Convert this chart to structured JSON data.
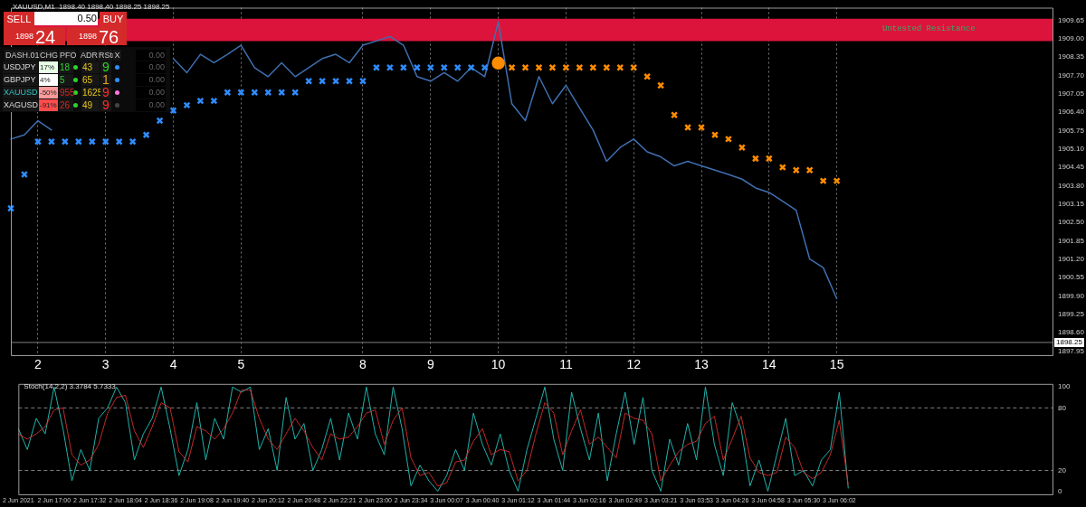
{
  "chart_data": [
    {
      "type": "line",
      "title": "XAUUSD,M1  1898.40 1898.40 1898.25 1898.25",
      "categories": [
        null,
        null,
        "2",
        null,
        null,
        null,
        null,
        "3",
        null,
        null,
        null,
        null,
        "4",
        null,
        null,
        null,
        null,
        "5",
        null,
        null,
        null,
        null,
        null,
        null,
        null,
        null,
        "8",
        null,
        null,
        null,
        null,
        "9",
        null,
        null,
        null,
        null,
        "10",
        null,
        null,
        null,
        null,
        "11",
        null,
        null,
        null,
        null,
        "12",
        null,
        null,
        null,
        null,
        "13",
        null,
        null,
        null,
        null,
        "14",
        null,
        null,
        null,
        null,
        "15",
        null,
        null,
        null,
        null,
        null,
        null,
        null,
        null,
        null,
        null,
        null,
        null,
        null,
        null,
        null,
        null
      ],
      "series": [
        {
          "type": "line",
          "color": "#3f6fb0",
          "values": [
            1905.45,
            1905.6,
            1906.1,
            1905.77,
            null,
            null,
            null,
            null,
            null,
            null,
            null,
            null,
            1908.3,
            1907.8,
            1908.45,
            1908.15,
            1908.45,
            1908.77,
            1907.98,
            1907.66,
            1908.15,
            1907.66,
            1907.98,
            1908.3,
            1908.45,
            1908.15,
            1908.77,
            1908.92,
            1909.08,
            1908.77,
            1907.66,
            1907.5,
            1907.8,
            1907.5,
            1907.98,
            1907.66,
            1909.6,
            1906.7,
            1906.1,
            1907.66,
            1906.7,
            1907.35,
            1906.55,
            1905.77,
            1904.66,
            1905.15,
            1905.45,
            1905.0,
            1904.82,
            1904.5,
            1904.66,
            1904.5,
            1904.35,
            1904.2,
            1904.03,
            1903.72,
            1903.56,
            1903.25,
            1902.93,
            1901.2,
            1900.9,
            1899.8,
            null,
            null,
            null,
            null,
            null,
            null,
            null,
            null,
            null,
            null,
            null,
            null,
            null,
            null,
            null,
            null
          ]
        },
        {
          "type": "scatter",
          "marker": "cross",
          "color": "#2f8cff",
          "values": [
            1903.0,
            1904.2,
            1905.36,
            1905.36,
            1905.36,
            1905.36,
            1905.36,
            1905.36,
            1905.36,
            1905.36,
            1905.6,
            1906.1,
            1906.46,
            1906.65,
            1906.8,
            1906.8,
            1907.1,
            1907.1,
            1907.1,
            1907.1,
            1907.1,
            1907.1,
            1907.5,
            1907.5,
            1907.5,
            1907.5,
            1907.5,
            1907.98,
            1907.98,
            1907.98,
            1907.98,
            1907.98,
            1907.98,
            1907.98,
            1907.98,
            1907.98,
            null,
            null,
            null,
            null,
            null,
            null,
            null,
            null,
            null,
            null,
            null,
            null,
            null,
            null,
            null,
            null,
            null,
            null,
            null,
            null,
            null,
            null,
            null,
            null,
            null,
            null,
            null,
            null,
            null,
            null,
            null,
            null,
            null,
            null,
            null,
            null,
            null,
            null,
            null,
            null,
            null,
            null
          ]
        },
        {
          "type": "scatter",
          "marker": "cross",
          "color": "#ff8c00",
          "values": [
            null,
            null,
            null,
            null,
            null,
            null,
            null,
            null,
            null,
            null,
            null,
            null,
            null,
            null,
            null,
            null,
            null,
            null,
            null,
            null,
            null,
            null,
            null,
            null,
            null,
            null,
            null,
            null,
            null,
            null,
            null,
            null,
            null,
            null,
            null,
            null,
            null,
            1907.98,
            1907.98,
            1907.98,
            1907.98,
            1907.98,
            1907.98,
            1907.98,
            1907.98,
            1907.98,
            1907.98,
            1907.66,
            1907.35,
            1906.3,
            1905.86,
            1905.86,
            1905.6,
            1905.45,
            1905.15,
            1904.76,
            1904.76,
            1904.45,
            1904.35,
            1904.35,
            1903.97,
            1903.97,
            null,
            null,
            null,
            null,
            null,
            null,
            null,
            null,
            null,
            null,
            null,
            null,
            null,
            null,
            null,
            null
          ]
        },
        {
          "type": "scatter",
          "marker": "circle",
          "color": "#ff8c00",
          "values": [
            null,
            null,
            null,
            null,
            null,
            null,
            null,
            null,
            null,
            null,
            null,
            null,
            null,
            null,
            null,
            null,
            null,
            null,
            null,
            null,
            null,
            null,
            null,
            null,
            null,
            null,
            null,
            null,
            null,
            null,
            null,
            null,
            null,
            null,
            null,
            null,
            1908.14,
            null,
            null,
            null,
            null,
            null,
            null,
            null,
            null,
            null,
            null,
            null,
            null,
            null,
            null,
            null,
            null,
            null,
            null,
            null,
            null,
            null,
            null,
            null,
            null,
            null,
            null,
            null,
            null,
            null,
            null,
            null,
            null,
            null,
            null,
            null,
            null,
            null,
            null,
            null,
            null,
            null
          ]
        }
      ],
      "ylim": [
        1897.8,
        1910.1
      ],
      "yticks": [
        1897.95,
        {
          "value": 1898.6,
          "label": "1898.60"
        },
        1899.25,
        {
          "value": 1899.9,
          "label": "1899.90"
        },
        1900.55,
        {
          "value": 1901.2,
          "label": "1901.20"
        },
        1901.85,
        {
          "value": 1902.5,
          "label": "1902.50"
        },
        1903.15,
        {
          "value": 1903.8,
          "label": "1903.80"
        },
        1904.45,
        {
          "value": 1905.1,
          "label": "1905.10"
        },
        1905.75,
        {
          "value": 1906.4,
          "label": "1906.40"
        },
        1907.05,
        {
          "value": 1907.7,
          "label": "1907.70"
        },
        1908.35,
        {
          "value": 1909,
          "label": "1909.00"
        },
        1909.65
      ],
      "grid": "x",
      "ref_lines": [
        {
          "axis": "y",
          "value": 1898.25,
          "label": "1898.25",
          "color": "#808080"
        }
      ],
      "bands": [
        {
          "axis": "y",
          "from": 1908.92,
          "to": 1909.71,
          "color": "#dc143c"
        }
      ],
      "annotations": [
        "Untested Resistance"
      ]
    },
    {
      "type": "line",
      "title": "Stoch(14,2,2) 3.3784 5.7333",
      "categories": [
        "2 Jun 2021",
        null,
        null,
        null,
        "2 Jun 17:00",
        null,
        null,
        null,
        "2 Jun 17:32",
        null,
        null,
        null,
        "2 Jun 18:04",
        null,
        null,
        null,
        "2 Jun 18:36",
        null,
        null,
        null,
        "2 Jun 19:08",
        null,
        null,
        null,
        "2 Jun 19:40",
        null,
        null,
        null,
        "2 Jun 20:12",
        null,
        null,
        null,
        "2 Jun 20:48",
        null,
        null,
        null,
        "2 Jun 22:21",
        null,
        null,
        null,
        "2 Jun 23:00",
        null,
        null,
        null,
        "2 Jun 23:34",
        null,
        null,
        null,
        "3 Jun 00:07",
        null,
        null,
        null,
        "3 Jun 00:40",
        null,
        null,
        null,
        "3 Jun 01:12",
        null,
        null,
        null,
        "3 Jun 01:44",
        null,
        null,
        null,
        "3 Jun 02:16",
        null,
        null,
        null,
        "3 Jun 02:49",
        null,
        null,
        null,
        "3 Jun 03:21",
        null,
        null,
        null,
        "3 Jun 03:53",
        null,
        null,
        null,
        "3 Jun 04:26",
        null,
        null,
        null,
        "3 Jun 04:58",
        null,
        null,
        null,
        "3 Jun 05:30",
        null,
        null,
        null,
        "3 Jun 06:02",
        null,
        null,
        null,
        null,
        null,
        null,
        null,
        null,
        null,
        null,
        null,
        null,
        null,
        null,
        null,
        null,
        null,
        null,
        null,
        null,
        null,
        null,
        null,
        null
      ],
      "series": [
        {
          "type": "line",
          "color": "#20b2aa",
          "values": [
            60,
            40,
            70,
            55,
            100,
            60,
            10,
            40,
            20,
            70,
            80,
            100,
            85,
            30,
            55,
            70,
            100,
            60,
            15,
            40,
            85,
            30,
            70,
            50,
            100,
            95,
            100,
            40,
            60,
            20,
            90,
            50,
            65,
            20,
            40,
            70,
            30,
            75,
            50,
            100,
            55,
            35,
            100,
            60,
            5,
            25,
            10,
            0,
            15,
            40,
            20,
            75,
            45,
            25,
            55,
            20,
            0,
            40,
            70,
            100,
            50,
            20,
            95,
            60,
            30,
            75,
            10,
            55,
            95,
            45,
            90,
            20,
            0,
            50,
            25,
            65,
            30,
            100,
            45,
            15,
            85,
            60,
            5,
            30,
            0,
            35,
            70,
            15,
            20,
            5,
            30,
            40,
            95,
            3,
            null,
            null,
            null,
            null,
            null,
            null,
            null,
            null,
            null,
            null,
            null,
            null,
            null,
            null,
            null,
            null,
            null,
            null,
            null,
            null,
            null,
            null,
            null
          ]
        },
        {
          "type": "line",
          "color": "#e03030",
          "line_style": "dotted",
          "values": [
            55,
            50,
            55,
            62,
            78,
            80,
            35,
            25,
            30,
            45,
            75,
            90,
            92,
            58,
            42,
            62,
            85,
            80,
            38,
            28,
            62,
            58,
            50,
            60,
            75,
            97,
            97,
            70,
            50,
            40,
            55,
            70,
            58,
            42,
            30,
            55,
            50,
            52,
            62,
            75,
            78,
            45,
            68,
            80,
            32,
            15,
            18,
            5,
            8,
            28,
            30,
            48,
            60,
            35,
            40,
            38,
            10,
            20,
            55,
            85,
            75,
            35,
            58,
            78,
            45,
            52,
            42,
            32,
            75,
            70,
            68,
            55,
            10,
            25,
            38,
            45,
            48,
            65,
            72,
            30,
            50,
            72,
            32,
            18,
            15,
            18,
            52,
            42,
            18,
            12,
            18,
            35,
            68,
            6,
            null,
            null,
            null,
            null,
            null,
            null,
            null,
            null,
            null,
            null,
            null,
            null,
            null,
            null,
            null,
            null,
            null,
            null,
            null,
            null,
            null,
            null,
            null
          ]
        }
      ],
      "ylim": [
        -3,
        103
      ],
      "yticks": [
        0,
        20,
        80,
        100
      ],
      "ref_lines": [
        {
          "axis": "y",
          "value": 20,
          "color": "#808080",
          "line_style": "dashed"
        },
        {
          "axis": "y",
          "value": 80,
          "color": "#808080",
          "line_style": "dashed"
        }
      ]
    },
    {
      "type": "other",
      "annotations": [
        "SELL",
        "0.50",
        "BUY",
        "1898",
        "24",
        "1898",
        "76",
        "DASH.01",
        "CHG",
        "PFO",
        "ADR",
        "RStr",
        "X",
        "0.00",
        "USDJPY",
        "17%",
        "18",
        "43",
        "9",
        "0.00",
        "GBPJPY",
        "4%",
        "5",
        "65",
        "1",
        "0.00",
        "XAUUSD",
        "-50%",
        "955",
        "1625",
        "9",
        "0.00",
        "XAGUSD",
        "-91%",
        "26",
        "49",
        "9",
        "0.00"
      ]
    }
  ]
}
